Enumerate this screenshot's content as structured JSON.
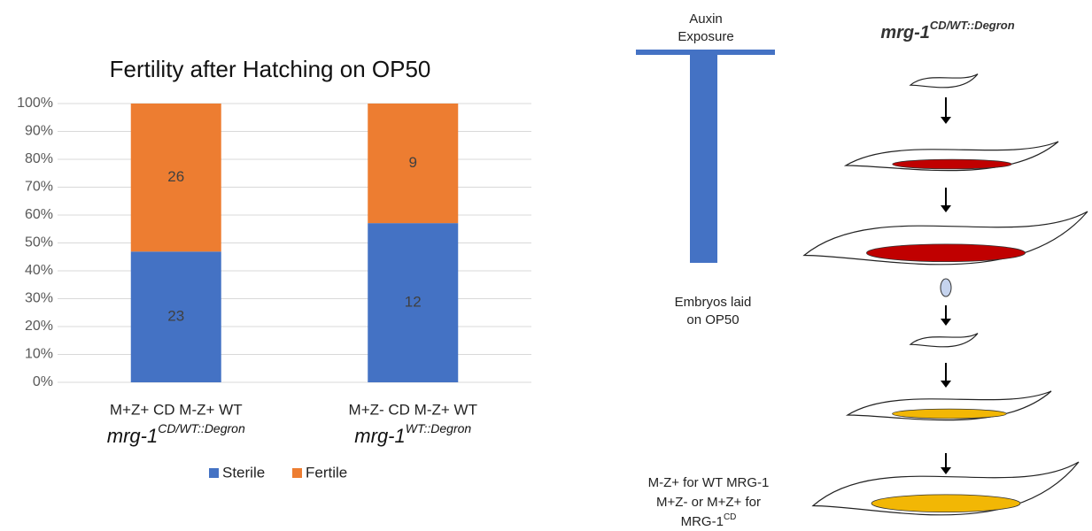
{
  "chart_data": {
    "type": "bar",
    "stacked": true,
    "title": "Fertility after Hatching on OP50",
    "categories": [
      "M+Z+ CD M-Z+ WT",
      "M+Z- CD M-Z+ WT"
    ],
    "category_genotypes": [
      {
        "base": "mrg-1",
        "sup": "CD/WT::Degron"
      },
      {
        "base": "mrg-1",
        "sup": "WT::Degron"
      }
    ],
    "series": [
      {
        "name": "Sterile",
        "color": "#4472c4",
        "values": [
          46.9,
          57.1
        ],
        "counts": [
          23,
          12
        ]
      },
      {
        "name": "Fertile",
        "color": "#ed7d31",
        "values": [
          53.1,
          42.9
        ],
        "counts": [
          26,
          9
        ]
      }
    ],
    "ylim": [
      0,
      100
    ],
    "yticks": [
      {
        "value": 0,
        "label": "0%"
      },
      {
        "value": 10,
        "label": "10%"
      },
      {
        "value": 20,
        "label": "20%"
      },
      {
        "value": 30,
        "label": "30%"
      },
      {
        "value": 40,
        "label": "40%"
      },
      {
        "value": 50,
        "label": "50%"
      },
      {
        "value": 60,
        "label": "60%"
      },
      {
        "value": 70,
        "label": "70%"
      },
      {
        "value": 80,
        "label": "80%"
      },
      {
        "value": 90,
        "label": "90%"
      },
      {
        "value": 100,
        "label": "100%"
      }
    ],
    "grid": true,
    "legend": "bottom"
  },
  "diagram": {
    "auxin": [
      "Auxin",
      "Exposure"
    ],
    "strain": {
      "base": "mrg-1",
      "sup": "CD/WT::Degron"
    },
    "embryos": [
      "Embryos laid",
      "on OP50"
    ],
    "outcome": [
      "M-Z+ for WT MRG-1",
      "M+Z- or M+Z+ for"
    ],
    "outcome_last": {
      "base": "MRG-1",
      "sup": "CD"
    }
  }
}
